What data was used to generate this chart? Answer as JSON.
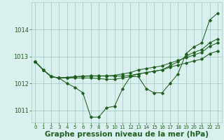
{
  "background_color": "#daf0ee",
  "grid_color": "#a8ccc8",
  "line_color": "#1e5e1e",
  "marker_color": "#1e5e1e",
  "xlabel": "Graphe pression niveau de la mer (hPa)",
  "xlabel_fontsize": 7.5,
  "xlim": [
    -0.5,
    23.5
  ],
  "ylim": [
    1010.55,
    1015.0
  ],
  "yticks": [
    1011,
    1012,
    1013,
    1014
  ],
  "xticks": [
    0,
    1,
    2,
    3,
    4,
    5,
    6,
    7,
    8,
    9,
    10,
    11,
    12,
    13,
    14,
    15,
    16,
    17,
    18,
    19,
    20,
    21,
    22,
    23
  ],
  "series": [
    [
      1012.8,
      1012.5,
      1012.25,
      1012.2,
      1012.0,
      1011.85,
      1011.65,
      1010.75,
      1010.75,
      1011.1,
      1011.15,
      1011.8,
      1012.25,
      1012.25,
      1011.8,
      1011.65,
      1011.65,
      1012.0,
      1012.35,
      1013.1,
      1013.35,
      1013.5,
      1014.35,
      1014.6
    ],
    [
      1012.8,
      1012.5,
      1012.25,
      1012.2,
      1012.2,
      1012.2,
      1012.2,
      1012.2,
      1012.18,
      1012.15,
      1012.15,
      1012.2,
      1012.25,
      1012.35,
      1012.4,
      1012.45,
      1012.5,
      1012.65,
      1012.8,
      1013.0,
      1013.15,
      1013.25,
      1013.5,
      1013.65
    ],
    [
      1012.8,
      1012.5,
      1012.25,
      1012.2,
      1012.22,
      1012.25,
      1012.27,
      1012.28,
      1012.28,
      1012.28,
      1012.3,
      1012.35,
      1012.4,
      1012.5,
      1012.55,
      1012.6,
      1012.65,
      1012.75,
      1012.85,
      1012.95,
      1013.05,
      1013.15,
      1013.38,
      1013.5
    ],
    [
      1012.8,
      1012.5,
      1012.25,
      1012.2,
      1012.22,
      1012.24,
      1012.26,
      1012.27,
      1012.27,
      1012.27,
      1012.27,
      1012.27,
      1012.3,
      1012.35,
      1012.4,
      1012.45,
      1012.5,
      1012.6,
      1012.68,
      1012.75,
      1012.83,
      1012.9,
      1013.1,
      1013.2
    ]
  ]
}
